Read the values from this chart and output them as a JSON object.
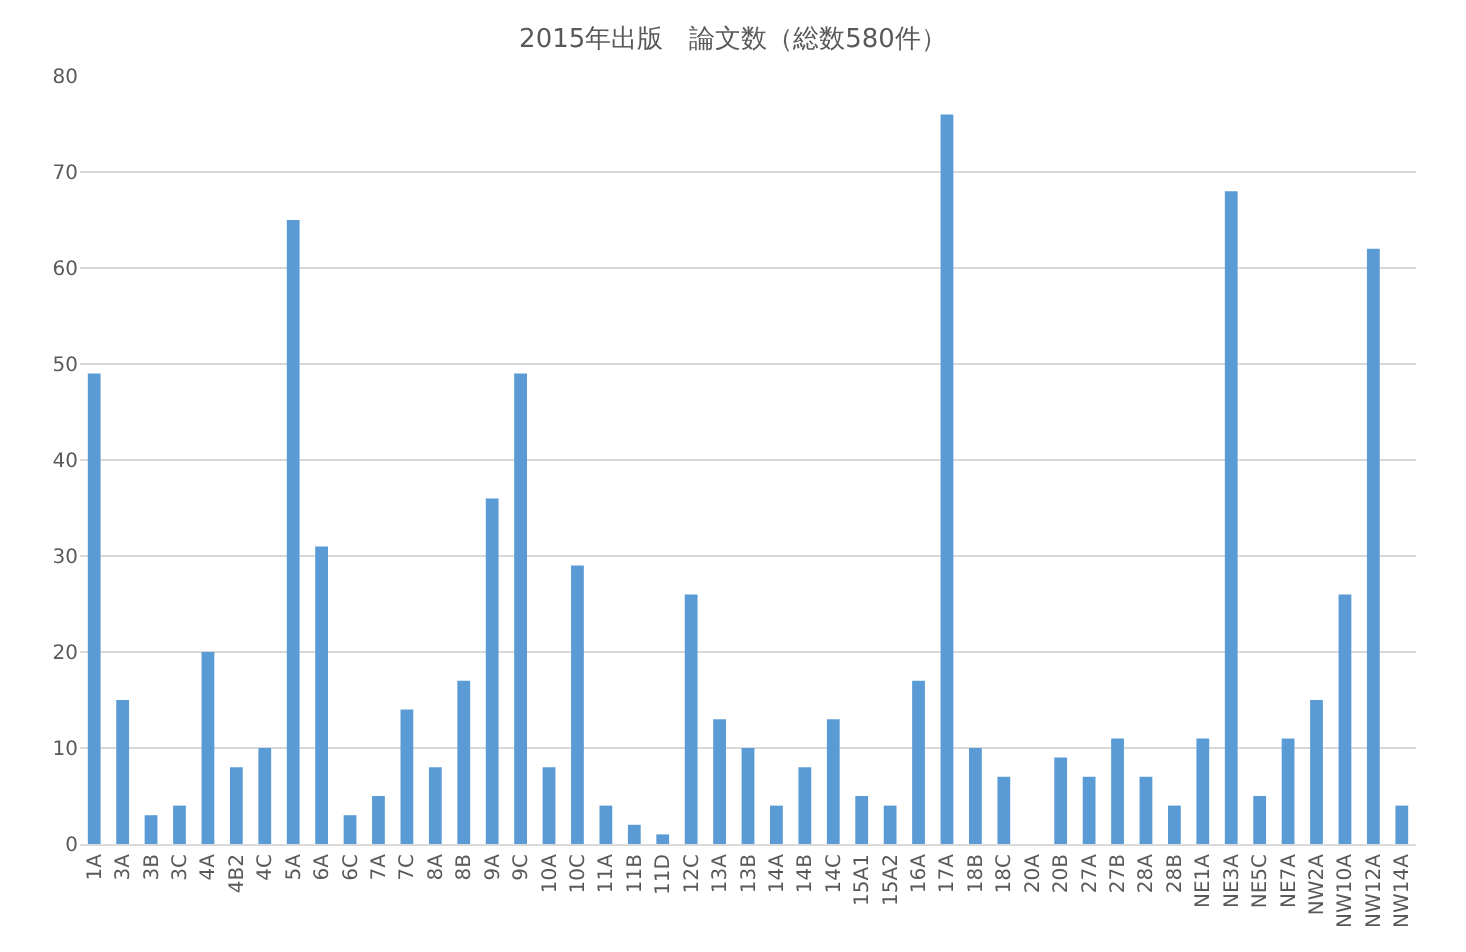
{
  "chart_data": {
    "type": "bar",
    "title": "2015年出版　論文数（総数580件）",
    "categories": [
      "1A",
      "3A",
      "3B",
      "3C",
      "4A",
      "4B2",
      "4C",
      "5A",
      "6A",
      "6C",
      "7A",
      "7C",
      "8A",
      "8B",
      "9A",
      "9C",
      "10A",
      "10C",
      "11A",
      "11B",
      "11D",
      "12C",
      "13A",
      "13B",
      "14A",
      "14B",
      "14C",
      "15A1",
      "15A2",
      "16A",
      "17A",
      "18B",
      "18C",
      "20A",
      "20B",
      "27A",
      "27B",
      "28A",
      "28B",
      "NE1A",
      "NE3A",
      "NE5C",
      "NE7A",
      "NW2A",
      "NW10A",
      "NW12A",
      "NW14A"
    ],
    "values": [
      49,
      15,
      3,
      4,
      20,
      8,
      10,
      65,
      31,
      3,
      5,
      14,
      8,
      17,
      36,
      49,
      8,
      29,
      4,
      2,
      1,
      26,
      13,
      10,
      4,
      8,
      13,
      5,
      4,
      17,
      76,
      10,
      7,
      0,
      9,
      7,
      11,
      7,
      4,
      11,
      68,
      5,
      11,
      15,
      26,
      62,
      4
    ],
    "color": "#5b9bd5",
    "ylim": [
      0,
      80
    ],
    "yticks": [
      0,
      10,
      20,
      30,
      40,
      50,
      60,
      70,
      80
    ],
    "grid": "y"
  }
}
